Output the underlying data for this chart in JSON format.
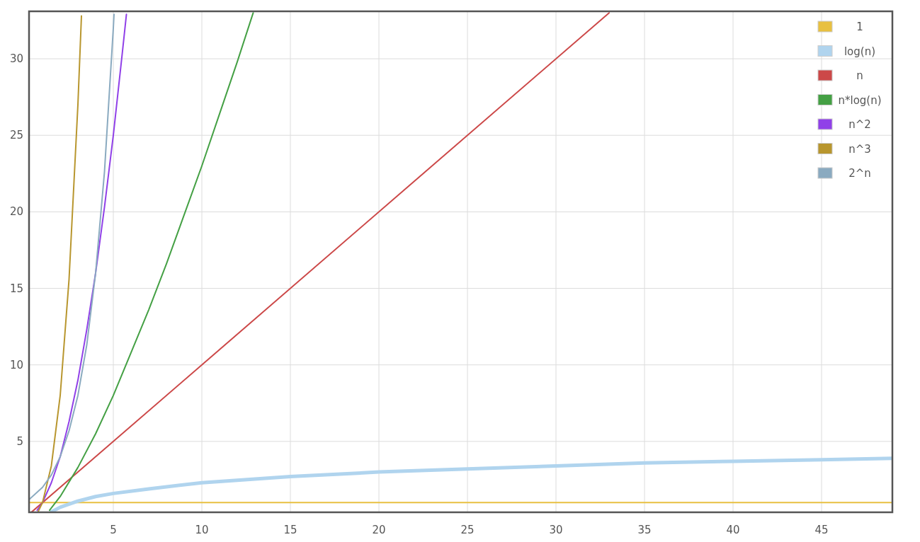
{
  "chart_data": {
    "type": "line",
    "xlim": [
      0.24,
      49
    ],
    "ylim": [
      0.37,
      33.1
    ],
    "xticks": [
      5,
      10,
      15,
      20,
      25,
      30,
      35,
      40,
      45
    ],
    "yticks": [
      5,
      10,
      15,
      20,
      25,
      30
    ],
    "grid": true,
    "legend": "top right",
    "marker": "none",
    "series": [
      {
        "name": "1",
        "color": "#e8c040",
        "x": [
          0.24,
          49
        ],
        "values": [
          1,
          1
        ]
      },
      {
        "name": "log(n)",
        "color": "#b0d4ee",
        "x": [
          1.5,
          2,
          3,
          4,
          5,
          7,
          10,
          15,
          20,
          25,
          30,
          35,
          40,
          45,
          49
        ],
        "values": [
          0.4,
          0.7,
          1.1,
          1.4,
          1.6,
          1.9,
          2.3,
          2.7,
          3.0,
          3.2,
          3.4,
          3.6,
          3.7,
          3.8,
          3.9
        ]
      },
      {
        "name": "n",
        "color": "#cc4848",
        "x": [
          0.4,
          33
        ],
        "values": [
          0.4,
          33
        ]
      },
      {
        "name": "n*log(n)",
        "color": "#44a044",
        "x": [
          1.4,
          2,
          3,
          4,
          5,
          6,
          7,
          8,
          9,
          10,
          11,
          12,
          12.9
        ],
        "values": [
          0.5,
          1.4,
          3.3,
          5.5,
          8.0,
          10.8,
          13.6,
          16.6,
          19.8,
          23.0,
          26.4,
          29.8,
          33.0
        ]
      },
      {
        "name": "n^2",
        "color": "#9040e8",
        "x": [
          0.7,
          1,
          1.5,
          2,
          2.5,
          3,
          3.5,
          4,
          4.5,
          5,
          5.5,
          5.74
        ],
        "values": [
          0.5,
          1,
          2.3,
          4,
          6.3,
          9,
          12.3,
          16,
          20.3,
          25,
          30.3,
          32.9
        ]
      },
      {
        "name": "n^3",
        "color": "#b8962e",
        "x": [
          0.75,
          1,
          1.5,
          2,
          2.5,
          3,
          3.2
        ],
        "values": [
          0.4,
          1,
          3.4,
          8,
          15.6,
          27,
          32.8
        ]
      },
      {
        "name": "2^n",
        "color": "#8aaac0",
        "x": [
          0.24,
          1,
          1.5,
          2,
          2.5,
          3,
          3.5,
          4,
          4.5,
          5,
          5.04
        ],
        "values": [
          1.2,
          2,
          2.8,
          4,
          5.7,
          8,
          11.3,
          16,
          22.6,
          32,
          32.9
        ]
      }
    ]
  }
}
